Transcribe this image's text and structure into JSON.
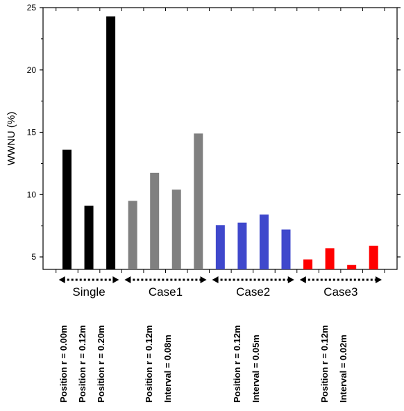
{
  "chart_data": {
    "type": "bar",
    "title": "",
    "xlabel": "",
    "ylabel": "WWNU (%)",
    "ylim": [
      4,
      25
    ],
    "yticks": [
      5,
      10,
      15,
      20,
      25
    ],
    "grid": false,
    "bars": [
      {
        "group": "Single",
        "value": 13.6,
        "color": "#000000"
      },
      {
        "group": "Single",
        "value": 9.1,
        "color": "#000000"
      },
      {
        "group": "Single",
        "value": 24.3,
        "color": "#000000"
      },
      {
        "group": "Case1",
        "value": 9.5,
        "color": "#808080"
      },
      {
        "group": "Case1",
        "value": 11.75,
        "color": "#808080"
      },
      {
        "group": "Case1",
        "value": 10.4,
        "color": "#808080"
      },
      {
        "group": "Case1",
        "value": 14.9,
        "color": "#808080"
      },
      {
        "group": "Case2",
        "value": 7.55,
        "color": "#3f48cc"
      },
      {
        "group": "Case2",
        "value": 7.75,
        "color": "#3f48cc"
      },
      {
        "group": "Case2",
        "value": 8.4,
        "color": "#3f48cc"
      },
      {
        "group": "Case2",
        "value": 7.2,
        "color": "#3f48cc"
      },
      {
        "group": "Case3",
        "value": 4.8,
        "color": "#ff0000"
      },
      {
        "group": "Case3",
        "value": 5.7,
        "color": "#ff0000"
      },
      {
        "group": "Case3",
        "value": 4.35,
        "color": "#ff0000"
      },
      {
        "group": "Case3",
        "value": 5.9,
        "color": "#ff0000"
      }
    ],
    "groups": [
      {
        "name": "Single",
        "notes": [
          "Position r = 0.00m",
          "Position r = 0.12m",
          "Position r = 0.20m"
        ]
      },
      {
        "name": "Case1",
        "notes": [
          "Position r = 0.12m",
          "Interval = 0.08m"
        ]
      },
      {
        "name": "Case2",
        "notes": [
          "Position r = 0.12m",
          "Interval = 0.05m"
        ]
      },
      {
        "name": "Case3",
        "notes": [
          "Position r = 0.12m",
          "Interval = 0.02m"
        ]
      }
    ]
  }
}
